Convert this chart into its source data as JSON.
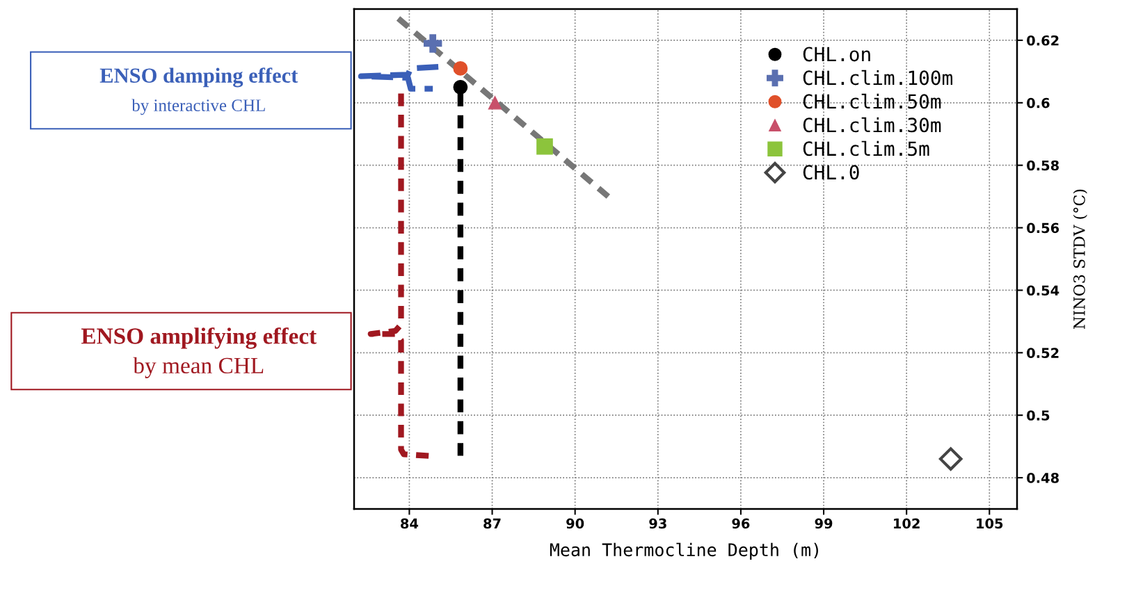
{
  "chart_data": {
    "type": "scatter",
    "xlabel": "Mean Thermocline Depth (m)",
    "ylabel": "NINO3 STDV (°C)",
    "xlim": [
      82,
      106
    ],
    "xticks": [
      84,
      87,
      90,
      93,
      96,
      99,
      102,
      105
    ],
    "ylim": [
      0.47,
      0.63
    ],
    "yticks": [
      0.48,
      0.5,
      0.52,
      0.54,
      0.56,
      0.58,
      0.6,
      0.62
    ],
    "grid": true,
    "legend": "top right",
    "series": [
      {
        "name": "CHL.on",
        "color": "#000000",
        "marker": "circle",
        "x": [
          85.85
        ],
        "values": [
          0.605
        ]
      },
      {
        "name": "CHL.clim.100m",
        "color": "#5a6fb0",
        "marker": "cross",
        "x": [
          84.85
        ],
        "values": [
          0.619
        ]
      },
      {
        "name": "CHL.clim.50m",
        "color": "#e0502a",
        "marker": "circle",
        "x": [
          85.85
        ],
        "values": [
          0.611
        ]
      },
      {
        "name": "CHL.clim.30m",
        "color": "#c8506a",
        "marker": "triangle",
        "x": [
          87.1
        ],
        "values": [
          0.6
        ]
      },
      {
        "name": "CHL.clim.5m",
        "color": "#8cc43c",
        "marker": "square",
        "x": [
          88.9
        ],
        "values": [
          0.586
        ]
      },
      {
        "name": "CHL.0",
        "color": "#444444",
        "marker": "diamond",
        "x": [
          103.6
        ],
        "values": [
          0.486
        ]
      },
      {
        "type": "line",
        "color": "#000000",
        "line_style": "dashed",
        "marker": "none",
        "x": [
          85.85,
          85.85
        ],
        "values": [
          0.603,
          0.487
        ]
      },
      {
        "type": "line",
        "color": "#a01820",
        "line_style": "dashed",
        "marker": "none",
        "x": [
          84.7,
          83.8,
          83.7,
          83.7,
          83.5,
          82.6,
          83.5,
          83.7,
          83.7
        ],
        "values": [
          0.487,
          0.4875,
          0.489,
          0.524,
          0.526,
          0.526,
          0.527,
          0.529,
          0.603
        ]
      },
      {
        "type": "line",
        "color": "#777777",
        "line_style": "dashed",
        "marker": "none",
        "x": [
          83.6,
          91.2
        ],
        "values": [
          0.627,
          0.57
        ]
      }
    ],
    "annotations": [
      "ENSO damping effect\nby interactive CHL",
      "ENSO amplifying effect\nby mean CHL"
    ]
  }
}
